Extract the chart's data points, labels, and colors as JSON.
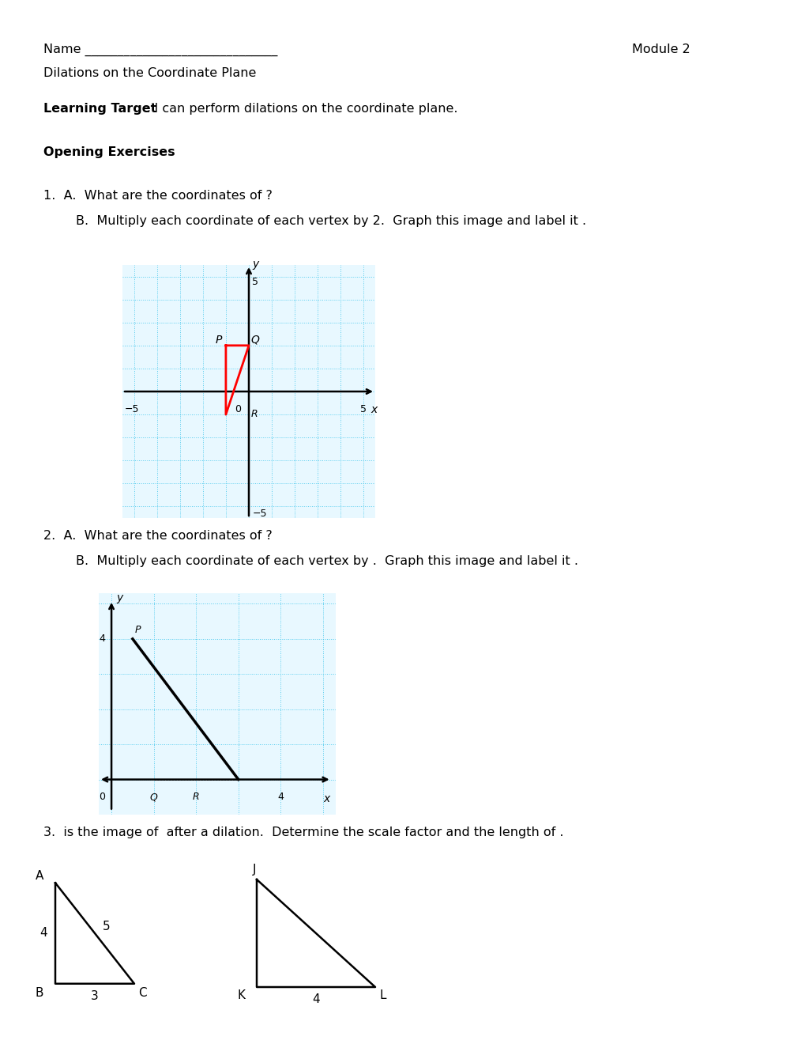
{
  "title": "Dilations on the Coordinate Plane",
  "module": "Module 2",
  "name_label": "Name ______________________________",
  "learning_target_bold": "Learning Target",
  "learning_target_rest": ": I can perform dilations on the coordinate plane.",
  "opening_exercises": "Opening Exercises",
  "q1a": "1.  A.  What are the coordinates of ?",
  "q1b": "        B.  Multiply each coordinate of each vertex by 2.  Graph this image and label it .",
  "q2a": "2.  A.  What are the coordinates of ?",
  "q2b": "        B.  Multiply each coordinate of each vertex by .  Graph this image and label it .",
  "q3": "3.  is the image of  after a dilation.  Determine the scale factor and the length of .",
  "grid_color": "#55ccee",
  "grid_bg": "#e8f8ff",
  "triangle1_color": "red",
  "triangle2_color": "black"
}
